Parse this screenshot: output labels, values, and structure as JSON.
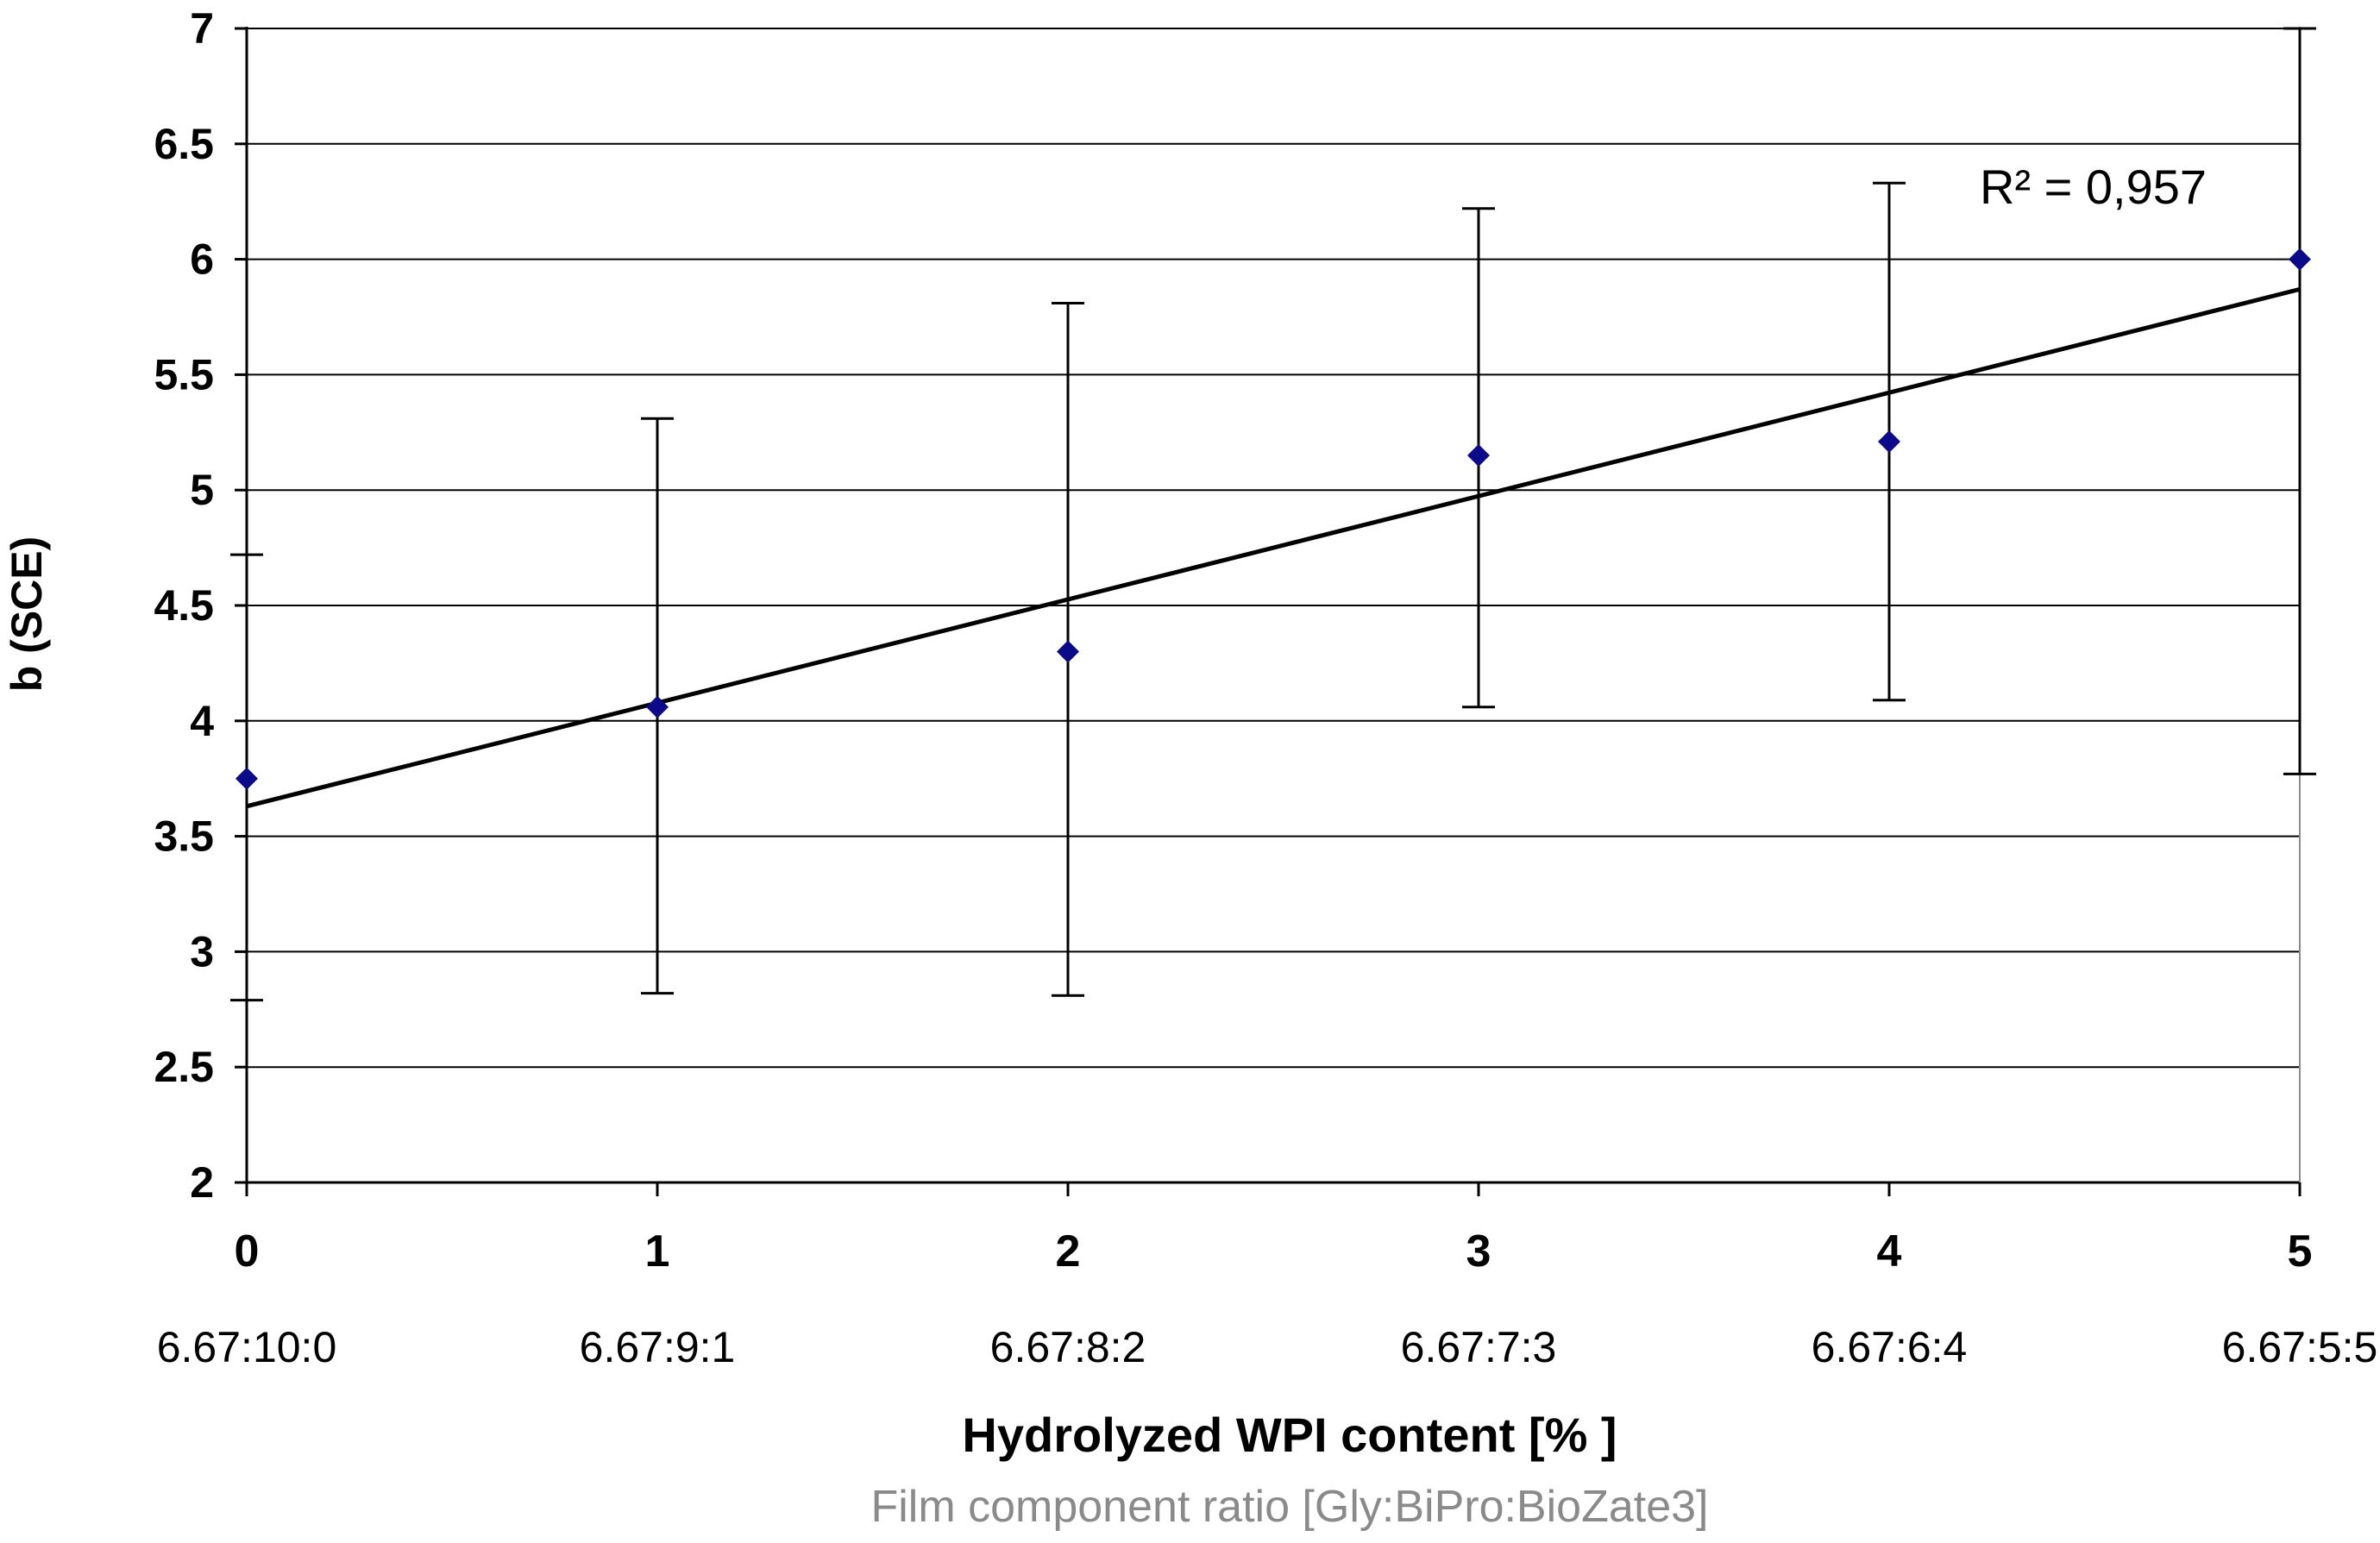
{
  "chart_data": {
    "type": "scatter",
    "x": [
      0,
      1,
      2,
      3,
      4,
      5
    ],
    "y": [
      3.75,
      4.06,
      4.3,
      5.15,
      5.21,
      6.0
    ],
    "error_bars": {
      "upper": [
        4.72,
        5.31,
        5.81,
        6.22,
        6.33,
        7.0
      ],
      "lower": [
        2.79,
        2.82,
        2.81,
        4.06,
        4.09,
        3.77
      ]
    },
    "trendline": {
      "type": "linear",
      "y_start": 3.63,
      "y_end": 5.87,
      "label": "R² = 0,957"
    },
    "x_ticks": [
      "0",
      "1",
      "2",
      "3",
      "4",
      "5"
    ],
    "x_secondary_ticks": [
      "6.67:10:0",
      "6.67:9:1",
      "6.67:8:2",
      "6.67:7:3",
      "6.67:6:4",
      "6.67:5:5"
    ],
    "y_ticks": [
      "2",
      "2.5",
      "3",
      "3.5",
      "4",
      "4.5",
      "5",
      "5.5",
      "6",
      "6.5",
      "7"
    ],
    "xlabel": "Hydrolyzed WPI content [% ]",
    "xlabel_secondary": "Film component ratio [Gly:BiPro:BioZate3]",
    "ylabel": "b (SCE)",
    "xlim": [
      0,
      5
    ],
    "ylim": [
      2,
      7
    ],
    "grid": true,
    "colors": {
      "points": "#0b0b8a",
      "lines": "#000000",
      "grid": "#000000",
      "subtitle": "#8a8a8a"
    }
  }
}
